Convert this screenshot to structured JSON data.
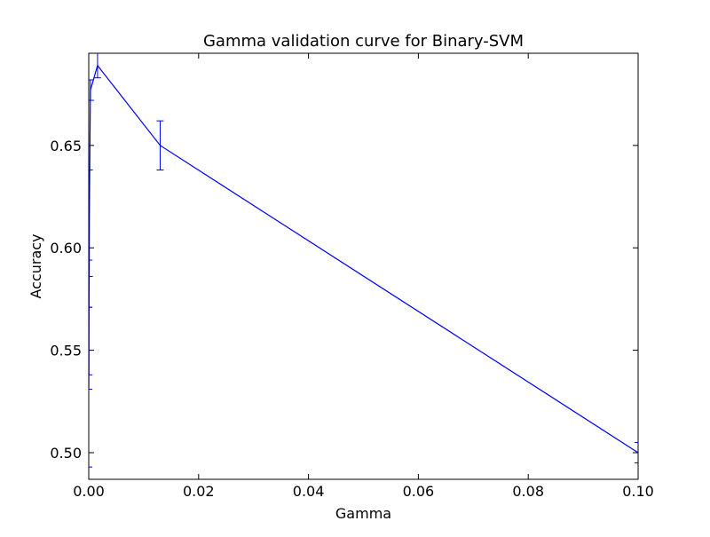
{
  "chart_data": {
    "type": "line",
    "title": "Gamma validation curve for Binary-SVM",
    "xlabel": "Gamma",
    "ylabel": "Accuracy",
    "xlim": [
      0.0,
      0.1
    ],
    "ylim": [
      0.487,
      0.695
    ],
    "grid": false,
    "legend": false,
    "xticks": [
      0.0,
      0.02,
      0.04,
      0.06,
      0.08,
      0.1
    ],
    "xtick_labels": [
      "0.00",
      "0.02",
      "0.04",
      "0.06",
      "0.08",
      "0.10"
    ],
    "yticks": [
      0.5,
      0.55,
      0.6,
      0.65
    ],
    "ytick_labels": [
      "0.50",
      "0.55",
      "0.60",
      "0.65"
    ],
    "color": "#0000ff",
    "series": [
      {
        "x": [
          0.0,
          1e-05,
          3e-05,
          0.0001,
          0.0003,
          0.0016,
          0.013,
          0.1
        ],
        "y": [
          0.532,
          0.551,
          0.566,
          0.612,
          0.677,
          0.689,
          0.65,
          0.5
        ],
        "yerr": [
          0.039,
          0.02,
          0.028,
          0.026,
          0.005,
          0.006,
          0.012,
          0.005
        ]
      }
    ]
  }
}
